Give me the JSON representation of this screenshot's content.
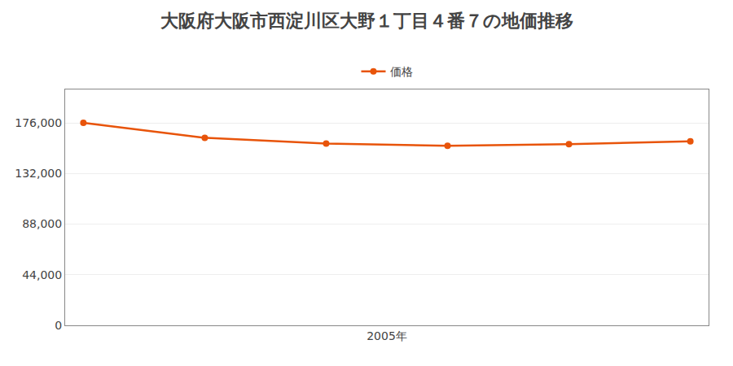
{
  "chart_data": {
    "type": "line",
    "title": "大阪府大阪市西淀川区大野１丁目４番７の地価推移",
    "x": [
      2000,
      2002,
      2004,
      2006,
      2008,
      2010
    ],
    "series": [
      {
        "name": "価格",
        "color": "#e8540a",
        "marker": "circle",
        "line_style": "solid",
        "values": [
          176000,
          163000,
          158000,
          156000,
          157500,
          160000
        ]
      }
    ],
    "xlim": [
      1999.7,
      2010.3
    ],
    "xticks": [
      {
        "value": 2005,
        "label": "2005年"
      }
    ],
    "ylim": [
      0,
      205000
    ],
    "yticks": [
      0,
      {
        "value": 44000,
        "label": "44,000"
      },
      {
        "value": 88000,
        "label": "88,000"
      },
      {
        "value": 132000,
        "label": "132,000"
      },
      {
        "value": 176000,
        "label": "176,000"
      }
    ],
    "grid": true,
    "legend": "top"
  }
}
